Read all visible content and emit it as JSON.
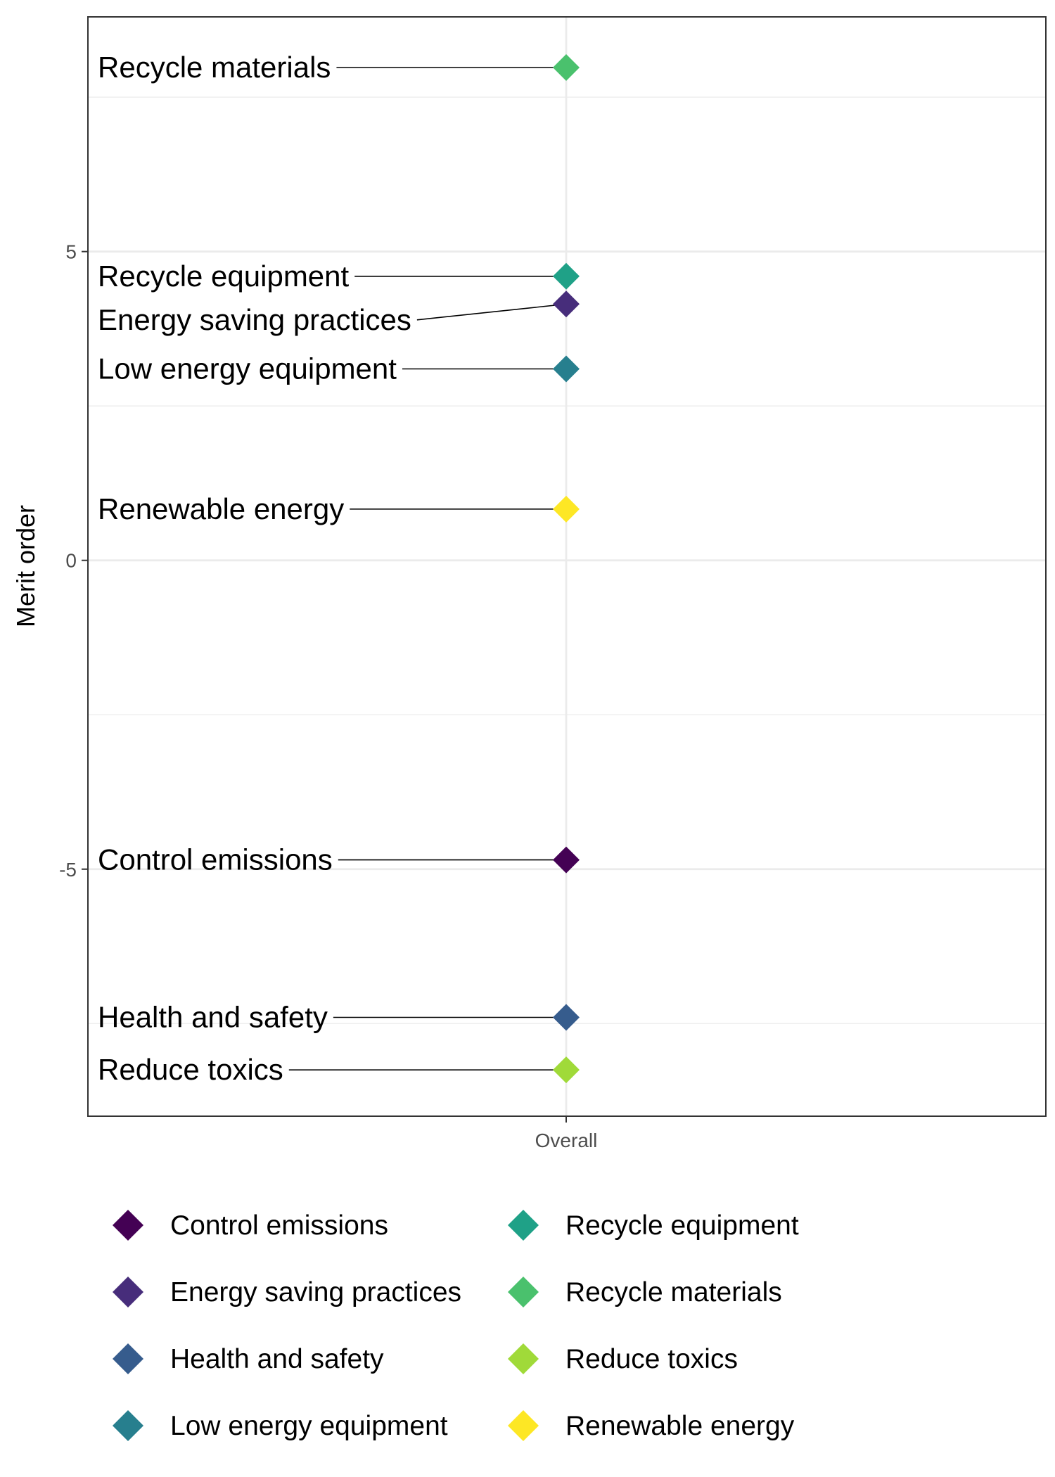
{
  "chart_data": {
    "type": "scatter",
    "ylabel": "Merit order",
    "xlabel": "",
    "x_categories": [
      "Overall"
    ],
    "yticks": [
      -5,
      0,
      5
    ],
    "ylim": [
      -9,
      8.8
    ],
    "grid": true,
    "legend_position": "bottom",
    "points": [
      {
        "label": "Recycle materials",
        "x": "Overall",
        "y": 7.98,
        "color": "#4AC16D"
      },
      {
        "label": "Recycle equipment",
        "x": "Overall",
        "y": 4.6,
        "color": "#1FA187"
      },
      {
        "label": "Energy saving practices",
        "x": "Overall",
        "y": 4.15,
        "color": "#472D7B"
      },
      {
        "label": "Low energy equipment",
        "x": "Overall",
        "y": 3.1,
        "color": "#277F8E"
      },
      {
        "label": "Renewable energy",
        "x": "Overall",
        "y": 0.83,
        "color": "#FDE725"
      },
      {
        "label": "Control emissions",
        "x": "Overall",
        "y": -4.85,
        "color": "#440154"
      },
      {
        "label": "Health and safety",
        "x": "Overall",
        "y": -7.4,
        "color": "#365C8D"
      },
      {
        "label": "Reduce toxics",
        "x": "Overall",
        "y": -8.25,
        "color": "#A0DA39"
      }
    ],
    "legend": [
      {
        "label": "Control emissions",
        "color": "#440154"
      },
      {
        "label": "Energy saving practices",
        "color": "#472D7B"
      },
      {
        "label": "Health and safety",
        "color": "#365C8D"
      },
      {
        "label": "Low energy equipment",
        "color": "#277F8E"
      },
      {
        "label": "Recycle equipment",
        "color": "#1FA187"
      },
      {
        "label": "Recycle materials",
        "color": "#4AC16D"
      },
      {
        "label": "Reduce toxics",
        "color": "#A0DA39"
      },
      {
        "label": "Renewable energy",
        "color": "#FDE725"
      }
    ]
  }
}
